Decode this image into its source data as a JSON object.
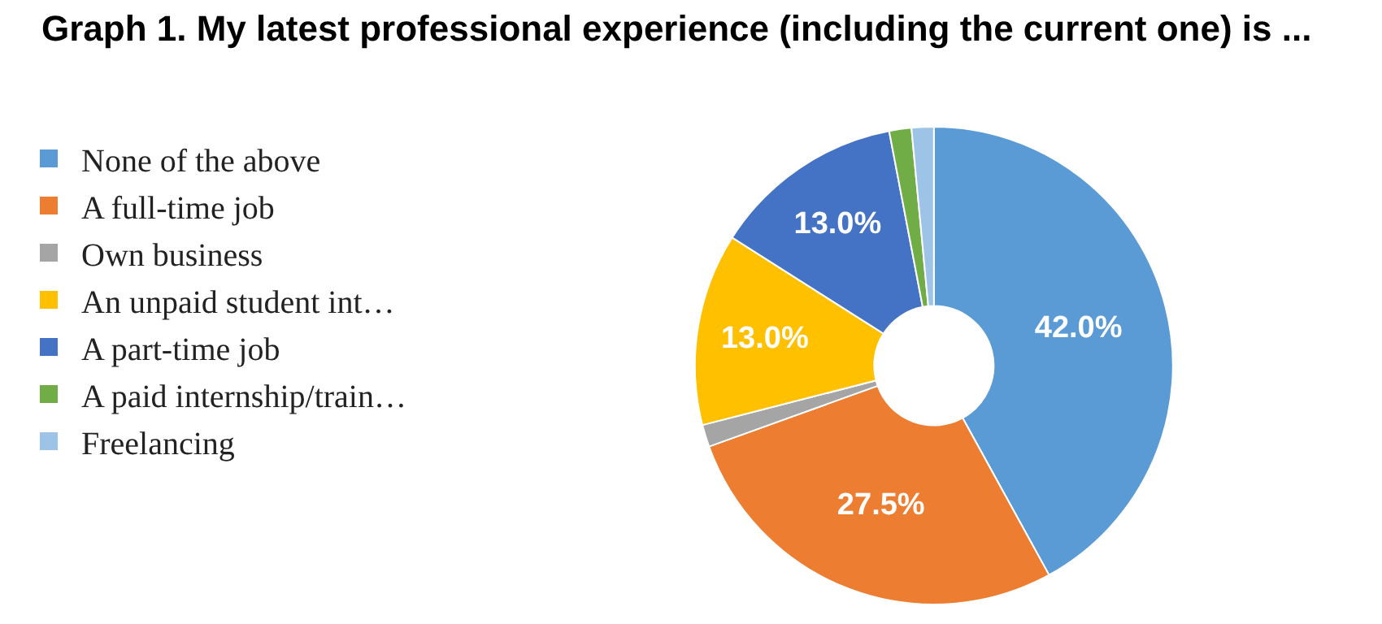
{
  "chart_data": {
    "type": "donut",
    "title": "Graph 1. My latest professional experience (including the current one) is ...",
    "categories": [
      "None of the above",
      "A full-time job",
      "Own business",
      "An unpaid student int…",
      "A part-time job",
      "A paid internship/train…",
      "Freelancing"
    ],
    "values": [
      42.0,
      27.5,
      1.5,
      13.0,
      13.0,
      1.5,
      1.5
    ],
    "value_labels": [
      "42.0%",
      "27.5%",
      null,
      "13.0%",
      "13.0%",
      null,
      null
    ],
    "colors": [
      "#5b9bd5",
      "#ed7d31",
      "#a5a5a5",
      "#ffc000",
      "#4472c4",
      "#70ad47",
      "#9dc3e6"
    ],
    "legend": "left"
  }
}
